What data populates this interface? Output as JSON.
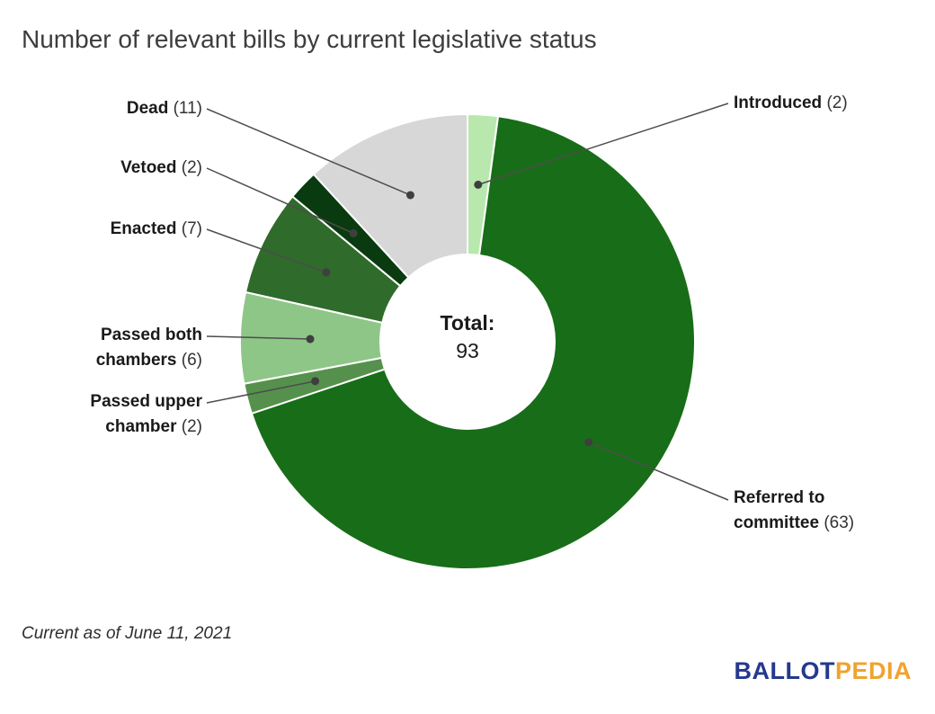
{
  "title": "Number of relevant bills by current legislative status",
  "center": {
    "label": "Total:",
    "value": "93"
  },
  "footnote": "Current as of June 11, 2021",
  "logo": {
    "part1": "BALLOT",
    "part2": "PEDIA"
  },
  "chart_data": {
    "type": "pie",
    "title": "Number of relevant bills by current legislative status",
    "total": 93,
    "center_label": "Total: 93",
    "legend_position": "callout-labels",
    "slices": [
      {
        "label": "Introduced",
        "value": 2,
        "count_label": "(2)",
        "color": "#b8e8ad"
      },
      {
        "label": "Referred to committee",
        "value": 63,
        "count_label": "(63)",
        "color": "#186d18"
      },
      {
        "label": "Passed upper chamber",
        "value": 2,
        "count_label": "(2)",
        "color": "#55914d"
      },
      {
        "label": "Passed both chambers",
        "value": 6,
        "count_label": "(6)",
        "color": "#8ec687"
      },
      {
        "label": "Enacted",
        "value": 7,
        "count_label": "(7)",
        "color": "#2f6b2a"
      },
      {
        "label": "Vetoed",
        "value": 2,
        "count_label": "(2)",
        "color": "#0a3a0f"
      },
      {
        "label": "Dead",
        "value": 11,
        "count_label": "(11)",
        "color": "#d7d7d7"
      }
    ]
  }
}
